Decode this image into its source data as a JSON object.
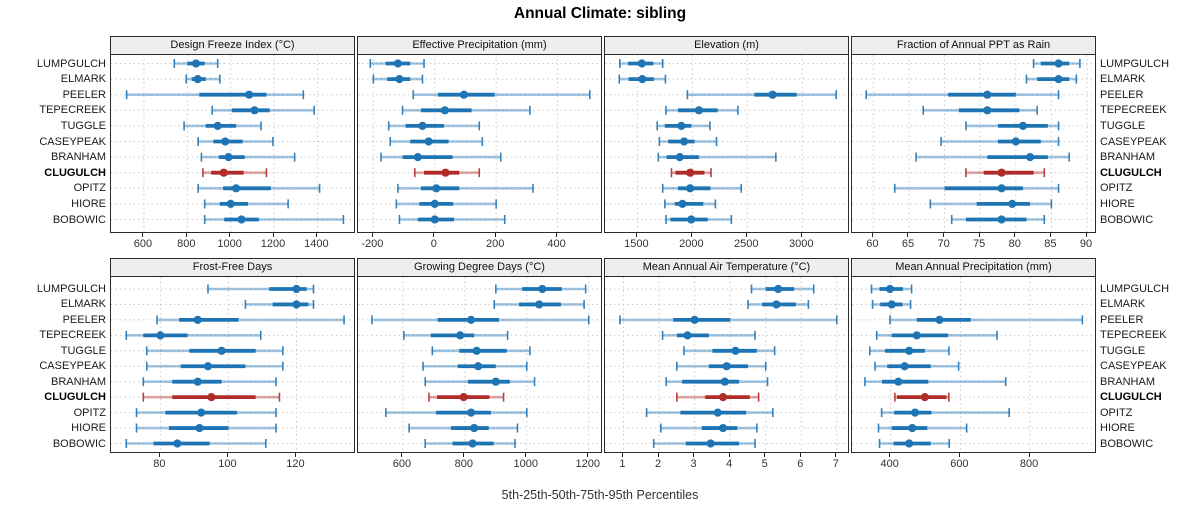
{
  "title": "Annual Climate: sibling",
  "footer": "5th-25th-50th-75th-95th Percentiles",
  "sites": [
    "LUMPGULCH",
    "ELMARK",
    "PEELER",
    "TEPECREEK",
    "TUGGLE",
    "CASEYPEAK",
    "BRANHAM",
    "CLUGULCH",
    "OPITZ",
    "HIORE",
    "BOBOWIC"
  ],
  "highlight_site": "CLUGULCH",
  "percentiles": [
    5,
    25,
    50,
    75,
    95
  ],
  "colors": {
    "series": "#1f74b4",
    "highlight": "#b02c28",
    "grid": "#cbcbcb",
    "panel_border": "#2a2a2a",
    "header_bg": "#eeeeee",
    "text": "#333333"
  },
  "chart_data": [
    {
      "type": "percentile-interval",
      "title": "Design Freeze Index (°C)",
      "row": 0,
      "col": 0,
      "xlim": [
        448,
        1578
      ],
      "ticks": [
        600,
        800,
        1000,
        1200,
        1400
      ],
      "tick_labels": [
        "600",
        "800",
        "1000",
        "1200",
        "1400"
      ],
      "values": [
        [
          740,
          800,
          840,
          880,
          940
        ],
        [
          795,
          820,
          848,
          885,
          950
        ],
        [
          520,
          855,
          1085,
          1165,
          1335
        ],
        [
          915,
          1005,
          1110,
          1180,
          1385
        ],
        [
          785,
          885,
          940,
          1025,
          1140
        ],
        [
          850,
          920,
          975,
          1055,
          1195
        ],
        [
          865,
          945,
          990,
          1065,
          1295
        ],
        [
          872,
          910,
          968,
          1060,
          1165
        ],
        [
          850,
          965,
          1025,
          1185,
          1410
        ],
        [
          880,
          950,
          1000,
          1080,
          1265
        ],
        [
          880,
          970,
          1050,
          1130,
          1520
        ]
      ]
    },
    {
      "type": "percentile-interval",
      "title": "Effective Precipitation (mm)",
      "row": 0,
      "col": 1,
      "xlim": [
        -250,
        548
      ],
      "ticks": [
        -200,
        0,
        200,
        400
      ],
      "tick_labels": [
        "-200",
        "0",
        "200",
        "400"
      ],
      "values": [
        [
          -210,
          -160,
          -120,
          -80,
          -35
        ],
        [
          -200,
          -155,
          -115,
          -80,
          -40
        ],
        [
          -70,
          10,
          95,
          195,
          505
        ],
        [
          -105,
          -45,
          33,
          120,
          310
        ],
        [
          -150,
          -95,
          -40,
          30,
          145
        ],
        [
          -145,
          -80,
          -20,
          45,
          155
        ],
        [
          -175,
          -105,
          -55,
          58,
          215
        ],
        [
          -65,
          -35,
          35,
          80,
          145
        ],
        [
          -120,
          -45,
          5,
          80,
          320
        ],
        [
          -125,
          -50,
          0,
          60,
          200
        ],
        [
          -115,
          -55,
          0,
          63,
          228
        ]
      ]
    },
    {
      "type": "percentile-interval",
      "title": "Elevation (m)",
      "row": 0,
      "col": 2,
      "xlim": [
        1205,
        3435
      ],
      "ticks": [
        1500,
        2000,
        2500,
        3000
      ],
      "tick_labels": [
        "1500",
        "2000",
        "2500",
        "3000"
      ],
      "values": [
        [
          1340,
          1415,
          1540,
          1645,
          1730
        ],
        [
          1335,
          1420,
          1545,
          1650,
          1755
        ],
        [
          1955,
          2565,
          2730,
          2950,
          3310
        ],
        [
          1760,
          1870,
          2060,
          2230,
          2415
        ],
        [
          1680,
          1750,
          1900,
          1990,
          2160
        ],
        [
          1700,
          1780,
          1925,
          2020,
          2220
        ],
        [
          1690,
          1765,
          1885,
          2060,
          2760
        ],
        [
          1810,
          1845,
          1980,
          2110,
          2170
        ],
        [
          1730,
          1870,
          1980,
          2165,
          2445
        ],
        [
          1750,
          1840,
          1910,
          2100,
          2210
        ],
        [
          1760,
          1800,
          1990,
          2140,
          2355
        ]
      ]
    },
    {
      "type": "percentile-interval",
      "title": "Fraction of Annual PPT as Rain",
      "row": 0,
      "col": 3,
      "xlim": [
        57,
        91.4
      ],
      "ticks": [
        60,
        65,
        70,
        75,
        80,
        85,
        90
      ],
      "tick_labels": [
        "60",
        "65",
        "70",
        "75",
        "80",
        "85",
        "90"
      ],
      "values": [
        [
          82.5,
          83.5,
          86,
          87.5,
          89
        ],
        [
          81.5,
          83,
          86,
          87.5,
          88.5
        ],
        [
          59,
          70.5,
          76,
          80,
          86
        ],
        [
          67,
          72,
          76,
          80.5,
          83
        ],
        [
          73,
          77.5,
          81,
          84.5,
          86
        ],
        [
          69.5,
          77.5,
          80,
          83.5,
          86
        ],
        [
          66,
          76,
          82,
          84.5,
          87.5
        ],
        [
          73,
          75.5,
          78,
          82.5,
          84
        ],
        [
          63,
          70,
          78,
          81,
          86
        ],
        [
          68,
          74.5,
          79.5,
          82,
          85
        ],
        [
          71,
          73,
          78,
          81.5,
          84
        ]
      ]
    },
    {
      "type": "percentile-interval",
      "title": "Frost-Free Days",
      "row": 1,
      "col": 0,
      "xlim": [
        65.5,
        137.5
      ],
      "ticks": [
        80,
        100,
        120
      ],
      "tick_labels": [
        "80",
        "100",
        "120"
      ],
      "values": [
        [
          94,
          112,
          120,
          123,
          125
        ],
        [
          105,
          113,
          120,
          123.5,
          125
        ],
        [
          79,
          85.5,
          91,
          103,
          134
        ],
        [
          70,
          75,
          80,
          88,
          109.5
        ],
        [
          76,
          88.5,
          98,
          108,
          116
        ],
        [
          76,
          86,
          94,
          105,
          116
        ],
        [
          75,
          83.5,
          91,
          98,
          114
        ],
        [
          75,
          83.5,
          95,
          108,
          115
        ],
        [
          73,
          81.5,
          92,
          102.5,
          114
        ],
        [
          73,
          82.5,
          91.5,
          100,
          114
        ],
        [
          70,
          78,
          85,
          94.5,
          111
        ]
      ]
    },
    {
      "type": "percentile-interval",
      "title": "Growing Degree Days (°C)",
      "row": 1,
      "col": 1,
      "xlim": [
        455,
        1246
      ],
      "ticks": [
        600,
        800,
        1000,
        1200
      ],
      "tick_labels": [
        "600",
        "800",
        "1000",
        "1200"
      ],
      "values": [
        [
          900,
          985,
          1050,
          1113,
          1190
        ],
        [
          895,
          975,
          1040,
          1110,
          1185
        ],
        [
          500,
          712,
          820,
          910,
          1200
        ],
        [
          603,
          690,
          785,
          830,
          938
        ],
        [
          695,
          782,
          838,
          935,
          1010
        ],
        [
          665,
          777,
          843,
          900,
          1000
        ],
        [
          672,
          810,
          900,
          945,
          1025
        ],
        [
          684,
          710,
          796,
          879,
          925
        ],
        [
          545,
          707,
          820,
          884,
          1000
        ],
        [
          620,
          755,
          830,
          877,
          970
        ],
        [
          672,
          760,
          825,
          893,
          962
        ]
      ]
    },
    {
      "type": "percentile-interval",
      "title": "Mean Annual Air Temperature (°C)",
      "row": 1,
      "col": 2,
      "xlim": [
        0.48,
        7.37
      ],
      "ticks": [
        1,
        2,
        3,
        4,
        5,
        6,
        7
      ],
      "tick_labels": [
        "1",
        "2",
        "3",
        "4",
        "5",
        "6",
        "7"
      ],
      "values": [
        [
          4.6,
          5.0,
          5.35,
          5.8,
          6.35
        ],
        [
          4.5,
          4.9,
          5.3,
          5.85,
          6.2
        ],
        [
          0.9,
          2.4,
          3.0,
          4.0,
          7.0
        ],
        [
          2.1,
          2.5,
          2.8,
          3.4,
          4.7
        ],
        [
          2.7,
          3.5,
          4.15,
          4.75,
          5.25
        ],
        [
          2.5,
          3.4,
          3.9,
          4.5,
          5.0
        ],
        [
          2.2,
          2.65,
          3.85,
          4.25,
          5.05
        ],
        [
          2.5,
          3.3,
          3.8,
          4.55,
          4.8
        ],
        [
          1.65,
          2.6,
          3.65,
          4.45,
          5.2
        ],
        [
          2.05,
          3.2,
          3.8,
          4.2,
          4.75
        ],
        [
          1.85,
          2.75,
          3.45,
          4.25,
          4.7
        ]
      ]
    },
    {
      "type": "percentile-interval",
      "title": "Mean Annual Precipitation (mm)",
      "row": 1,
      "col": 3,
      "xlim": [
        289,
        992
      ],
      "ticks": [
        400,
        600,
        800
      ],
      "tick_labels": [
        "400",
        "600",
        "800"
      ],
      "values": [
        [
          345,
          368,
          398,
          435,
          460
        ],
        [
          348,
          370,
          403,
          434,
          457
        ],
        [
          398,
          475,
          540,
          630,
          950
        ],
        [
          360,
          403,
          475,
          565,
          705
        ],
        [
          340,
          384,
          453,
          498,
          567
        ],
        [
          355,
          390,
          440,
          515,
          595
        ],
        [
          326,
          375,
          422,
          508,
          730
        ],
        [
          412,
          418,
          498,
          560,
          567
        ],
        [
          374,
          410,
          470,
          517,
          740
        ],
        [
          365,
          403,
          462,
          505,
          618
        ],
        [
          368,
          408,
          453,
          515,
          568
        ]
      ]
    }
  ]
}
